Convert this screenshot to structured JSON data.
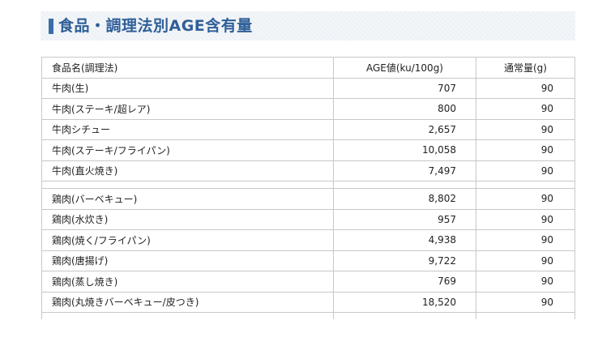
{
  "title": "食品・調理法別AGE含有量",
  "table": {
    "headers": {
      "name": "食品名(調理法)",
      "age": "AGE値(ku/100g)",
      "qty": "通常量(g)"
    },
    "group1": [
      {
        "name": "牛肉(生)",
        "age": "707",
        "qty": "90"
      },
      {
        "name": "牛肉(ステーキ/超レア)",
        "age": "800",
        "qty": "90"
      },
      {
        "name": "牛肉シチュー",
        "age": "2,657",
        "qty": "90"
      },
      {
        "name": "牛肉(ステーキ/フライパン)",
        "age": "10,058",
        "qty": "90"
      },
      {
        "name": "牛肉(直火焼き)",
        "age": "7,497",
        "qty": "90"
      }
    ],
    "group2": [
      {
        "name": "鶏肉(バーベキュー)",
        "age": "8,802",
        "qty": "90"
      },
      {
        "name": "鶏肉(水炊き)",
        "age": "957",
        "qty": "90"
      },
      {
        "name": "鶏肉(焼く/フライパン)",
        "age": "4,938",
        "qty": "90"
      },
      {
        "name": "鶏肉(唐揚げ)",
        "age": "9,722",
        "qty": "90"
      },
      {
        "name": "鶏肉(蒸し焼き)",
        "age": "769",
        "qty": "90"
      },
      {
        "name": "鶏肉(丸焼きバーベキュー/皮つき)",
        "age": "18,520",
        "qty": "90"
      }
    ]
  }
}
